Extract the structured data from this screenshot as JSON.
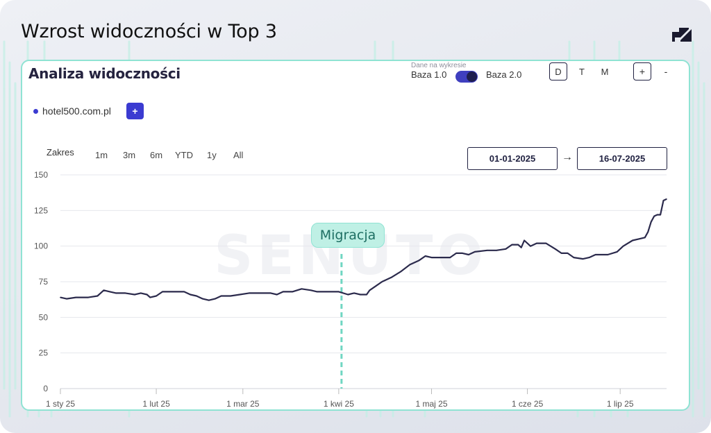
{
  "page_title": "Wzrost widoczności w Top 3",
  "card": {
    "title": "Analiza widoczności",
    "data_caption": "Dane na wykresie",
    "base1_label": "Baza 1.0",
    "base2_label": "Baza 2.0",
    "toggle_on": true,
    "period_buttons": [
      "D",
      "T",
      "M"
    ],
    "active_period": "D",
    "zoom_in_label": "+",
    "zoom_out_label": "-"
  },
  "domain": {
    "name": "hotel500.com.pl",
    "add_label": "+",
    "color": "#3b3bd1"
  },
  "range": {
    "label": "Zakres",
    "options": [
      "1m",
      "3m",
      "6m",
      "YTD",
      "1y",
      "All"
    ],
    "date_from": "01-01-2025",
    "date_to": "16-07-2025",
    "arrow": "→"
  },
  "annotation": {
    "label": "Migracja",
    "date": "2025-04-01"
  },
  "colors": {
    "line": "#2b2a4c",
    "accent": "#8fe3d3",
    "marker": "#6fd6c2",
    "watermark": "#f1f2f5"
  },
  "chart_data": {
    "type": "line",
    "title": "Analiza widoczności",
    "watermark": "SENUTO",
    "ylim": [
      0,
      150
    ],
    "yticks": [
      0,
      25,
      50,
      75,
      100,
      125,
      150
    ],
    "xlim": [
      "2025-01-01",
      "2025-07-16"
    ],
    "xticks": [
      {
        "date": "2025-01-01",
        "label": "1 sty 25"
      },
      {
        "date": "2025-02-01",
        "label": "1 lut 25"
      },
      {
        "date": "2025-03-01",
        "label": "1 mar 25"
      },
      {
        "date": "2025-04-01",
        "label": "1 kwi 25"
      },
      {
        "date": "2025-05-01",
        "label": "1 maj 25"
      },
      {
        "date": "2025-06-01",
        "label": "1 cze 25"
      },
      {
        "date": "2025-07-01",
        "label": "1 lip 25"
      }
    ],
    "grid": true,
    "series": [
      {
        "name": "hotel500.com.pl",
        "points": [
          [
            "2025-01-01",
            64
          ],
          [
            "2025-01-03",
            63
          ],
          [
            "2025-01-06",
            64
          ],
          [
            "2025-01-10",
            64
          ],
          [
            "2025-01-13",
            65
          ],
          [
            "2025-01-14",
            67
          ],
          [
            "2025-01-15",
            69
          ],
          [
            "2025-01-17",
            68
          ],
          [
            "2025-01-19",
            67
          ],
          [
            "2025-01-22",
            67
          ],
          [
            "2025-01-25",
            66
          ],
          [
            "2025-01-27",
            67
          ],
          [
            "2025-01-29",
            66
          ],
          [
            "2025-01-30",
            64
          ],
          [
            "2025-02-01",
            65
          ],
          [
            "2025-02-03",
            68
          ],
          [
            "2025-02-06",
            68
          ],
          [
            "2025-02-10",
            68
          ],
          [
            "2025-02-12",
            66
          ],
          [
            "2025-02-14",
            65
          ],
          [
            "2025-02-16",
            63
          ],
          [
            "2025-02-18",
            62
          ],
          [
            "2025-02-20",
            63
          ],
          [
            "2025-02-22",
            65
          ],
          [
            "2025-02-25",
            65
          ],
          [
            "2025-02-28",
            66
          ],
          [
            "2025-03-03",
            67
          ],
          [
            "2025-03-06",
            67
          ],
          [
            "2025-03-10",
            67
          ],
          [
            "2025-03-12",
            66
          ],
          [
            "2025-03-14",
            68
          ],
          [
            "2025-03-17",
            68
          ],
          [
            "2025-03-20",
            70
          ],
          [
            "2025-03-23",
            69
          ],
          [
            "2025-03-25",
            68
          ],
          [
            "2025-03-28",
            68
          ],
          [
            "2025-04-01",
            68
          ],
          [
            "2025-04-04",
            66
          ],
          [
            "2025-04-06",
            67
          ],
          [
            "2025-04-08",
            66
          ],
          [
            "2025-04-10",
            66
          ],
          [
            "2025-04-11",
            69
          ],
          [
            "2025-04-13",
            72
          ],
          [
            "2025-04-15",
            75
          ],
          [
            "2025-04-18",
            78
          ],
          [
            "2025-04-21",
            82
          ],
          [
            "2025-04-24",
            87
          ],
          [
            "2025-04-27",
            90
          ],
          [
            "2025-04-29",
            93
          ],
          [
            "2025-05-01",
            92
          ],
          [
            "2025-05-04",
            92
          ],
          [
            "2025-05-07",
            92
          ],
          [
            "2025-05-09",
            95
          ],
          [
            "2025-05-11",
            95
          ],
          [
            "2025-05-13",
            94
          ],
          [
            "2025-05-15",
            96
          ],
          [
            "2025-05-19",
            97
          ],
          [
            "2025-05-22",
            97
          ],
          [
            "2025-05-25",
            98
          ],
          [
            "2025-05-27",
            101
          ],
          [
            "2025-05-29",
            101
          ],
          [
            "2025-05-30",
            99
          ],
          [
            "2025-05-31",
            104
          ],
          [
            "2025-06-02",
            100
          ],
          [
            "2025-06-04",
            102
          ],
          [
            "2025-06-07",
            102
          ],
          [
            "2025-06-10",
            98
          ],
          [
            "2025-06-12",
            95
          ],
          [
            "2025-06-14",
            95
          ],
          [
            "2025-06-16",
            92
          ],
          [
            "2025-06-19",
            91
          ],
          [
            "2025-06-21",
            92
          ],
          [
            "2025-06-23",
            94
          ],
          [
            "2025-06-27",
            94
          ],
          [
            "2025-06-30",
            96
          ],
          [
            "2025-07-02",
            100
          ],
          [
            "2025-07-05",
            104
          ],
          [
            "2025-07-07",
            105
          ],
          [
            "2025-07-09",
            106
          ],
          [
            "2025-07-10",
            110
          ],
          [
            "2025-07-11",
            117
          ],
          [
            "2025-07-12",
            121
          ],
          [
            "2025-07-13",
            122
          ],
          [
            "2025-07-14",
            122
          ],
          [
            "2025-07-15",
            132
          ],
          [
            "2025-07-16",
            133
          ]
        ]
      }
    ]
  }
}
